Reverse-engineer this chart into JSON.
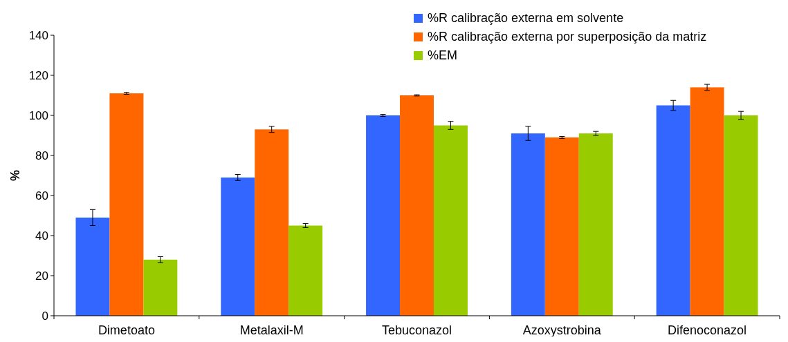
{
  "chart_data": {
    "type": "bar",
    "ylabel": "%",
    "categories": [
      "Dimetoato",
      "Metalaxil-M",
      "Tebuconazol",
      "Azoxystrobina",
      "Difenoconazol"
    ],
    "series": [
      {
        "name": "%R calibração externa em solvente",
        "color": "#3366ff",
        "values": [
          49,
          69,
          100,
          91,
          105
        ],
        "errors": [
          4,
          1.5,
          0.5,
          3.5,
          2.5
        ]
      },
      {
        "name": "%R calibração externa por superposição da matriz",
        "color": "#ff6600",
        "values": [
          111,
          93,
          110,
          89,
          114
        ],
        "errors": [
          0.5,
          1.5,
          0.3,
          0.5,
          1.5
        ]
      },
      {
        "name": "%EM",
        "color": "#99cc00",
        "values": [
          28,
          45,
          95,
          91,
          100
        ],
        "errors": [
          1.5,
          1,
          2,
          1,
          2
        ]
      }
    ],
    "ylim": [
      0,
      140
    ],
    "yticks": [
      0,
      20,
      40,
      60,
      80,
      100,
      120,
      140
    ],
    "legend": "top"
  }
}
